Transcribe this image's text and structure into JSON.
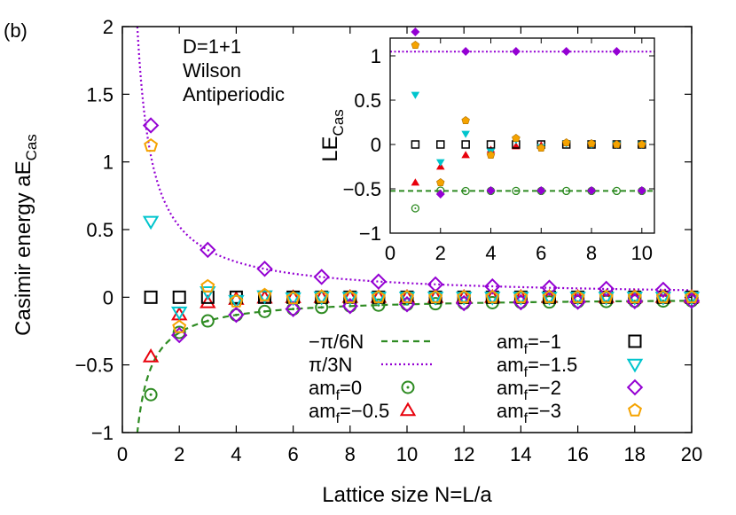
{
  "chart_data": [
    {
      "type": "scatter",
      "panel_label": "(b)",
      "xlabel": "Lattice size N=L/a",
      "ylabel": "Casimir energy aE",
      "ylabel_sub": "Cas",
      "xlim": [
        0,
        20
      ],
      "ylim": [
        -1,
        2
      ],
      "xticks": [
        "0",
        "2",
        "4",
        "6",
        "8",
        "10",
        "12",
        "14",
        "16",
        "18",
        "20"
      ],
      "yticks": [
        "−1",
        "−0.5",
        "0",
        "0.5",
        "1",
        "1.5",
        "2"
      ],
      "annotations": [
        "D=1+1",
        "Wilson",
        "Antiperiodic"
      ],
      "curves": [
        {
          "name": "−π/6N",
          "formula": "-pi/(6N)",
          "color": "#2e8b22",
          "style": "dashed"
        },
        {
          "name": "π/3N",
          "formula": "pi/(3N)",
          "color": "#9400d3",
          "style": "dotted"
        }
      ],
      "series": [
        {
          "name": "am",
          "name_sub": "f",
          "name_rest": "=0",
          "marker": "circle-dot",
          "color": "#2e8b22",
          "x": [
            1,
            2,
            3,
            4,
            5,
            6,
            7,
            8,
            9,
            10,
            11,
            12,
            13,
            14,
            15,
            16,
            17,
            18,
            19,
            20
          ],
          "y": [
            -0.72,
            -0.26,
            -0.175,
            -0.131,
            -0.105,
            -0.087,
            -0.075,
            -0.065,
            -0.058,
            -0.052,
            -0.048,
            -0.044,
            -0.04,
            -0.037,
            -0.035,
            -0.033,
            -0.031,
            -0.029,
            -0.028,
            -0.026
          ]
        },
        {
          "name": "am",
          "name_sub": "f",
          "name_rest": "=−0.5",
          "marker": "triangle-up",
          "color": "#e8000b",
          "x": [
            1,
            2,
            3,
            4,
            5,
            6,
            7,
            8,
            9,
            10,
            11,
            12,
            13,
            14,
            15,
            16,
            17,
            18,
            19,
            20
          ],
          "y": [
            -0.44,
            -0.13,
            -0.04,
            -0.015,
            -0.005,
            -0.002,
            -0.001,
            0,
            0,
            0,
            0,
            0,
            0,
            0,
            0,
            0,
            0,
            0,
            0,
            0
          ]
        },
        {
          "name": "am",
          "name_sub": "f",
          "name_rest": "=−1",
          "marker": "square",
          "color": "#000000",
          "x": [
            1,
            2,
            3,
            4,
            5,
            6,
            7,
            8,
            9,
            10,
            11,
            12,
            13,
            14,
            15,
            16,
            17,
            18,
            19,
            20
          ],
          "y": [
            0,
            0,
            0,
            0,
            0,
            0,
            0,
            0,
            0,
            0,
            0,
            0,
            0,
            0,
            0,
            0,
            0,
            0,
            0,
            0
          ]
        },
        {
          "name": "am",
          "name_sub": "f",
          "name_rest": "=−1.5",
          "marker": "triangle-down",
          "color": "#00c5cd",
          "x": [
            1,
            2,
            3,
            4,
            5,
            6,
            7,
            8,
            9,
            10,
            11,
            12,
            13,
            14,
            15,
            16,
            17,
            18,
            19,
            20
          ],
          "y": [
            0.56,
            -0.11,
            0.04,
            -0.025,
            0.01,
            -0.005,
            0.002,
            -0.001,
            0,
            0,
            0,
            0,
            0,
            0,
            0,
            0,
            0,
            0,
            0,
            0
          ]
        },
        {
          "name": "am",
          "name_sub": "f",
          "name_rest": "=−2",
          "marker": "diamond",
          "color": "#9400d3",
          "x": [
            1,
            2,
            3,
            4,
            5,
            6,
            7,
            8,
            9,
            10,
            11,
            12,
            13,
            14,
            15,
            16,
            17,
            18,
            19,
            20
          ],
          "y": [
            1.27,
            -0.28,
            0.35,
            -0.13,
            0.21,
            -0.087,
            0.15,
            -0.065,
            0.116,
            -0.052,
            0.095,
            -0.044,
            0.08,
            -0.037,
            0.07,
            -0.033,
            0.062,
            -0.029,
            0.055,
            -0.026
          ]
        },
        {
          "name": "am",
          "name_sub": "f",
          "name_rest": "=−3",
          "marker": "pentagon",
          "color": "#f5a300",
          "x": [
            1,
            2,
            3,
            4,
            5,
            6,
            7,
            8,
            9,
            10,
            11,
            12,
            13,
            14,
            15,
            16,
            17,
            18,
            19,
            20
          ],
          "y": [
            1.12,
            -0.22,
            0.08,
            -0.03,
            0.015,
            -0.007,
            0.003,
            -0.001,
            0,
            0,
            0,
            0,
            0,
            0,
            0,
            0,
            0,
            0,
            0,
            0
          ]
        }
      ],
      "legend": {
        "placement": "bottom-center",
        "columns": 2
      }
    },
    {
      "type": "scatter",
      "inset": true,
      "ylabel": "LE",
      "ylabel_sub": "Cas",
      "xlim": [
        0,
        10.5
      ],
      "ylim": [
        -1,
        1.2
      ],
      "xticks": [
        "0",
        "2",
        "4",
        "6",
        "8",
        "10"
      ],
      "yticks": [
        "−1",
        "−0.5",
        "0",
        "0.5",
        "1"
      ],
      "curves": [
        {
          "name": "−π/6",
          "value": -0.5236,
          "color": "#2e8b22",
          "style": "dashed"
        },
        {
          "name": "π/3",
          "value": 1.0472,
          "color": "#9400d3",
          "style": "dotted"
        }
      ],
      "series": [
        {
          "marker": "circle-dot",
          "color": "#2e8b22",
          "x": [
            1,
            2,
            3,
            4,
            5,
            6,
            7,
            8,
            9,
            10
          ],
          "y": [
            -0.72,
            -0.52,
            -0.525,
            -0.524,
            -0.524,
            -0.524,
            -0.524,
            -0.524,
            -0.524,
            -0.524
          ]
        },
        {
          "marker": "triangle-up",
          "color": "#e8000b",
          "x": [
            1,
            2,
            3,
            4,
            5,
            6
          ],
          "y": [
            -0.43,
            -0.25,
            -0.12,
            -0.06,
            -0.02,
            -0.01
          ]
        },
        {
          "marker": "square",
          "color": "#000000",
          "x": [
            1,
            2,
            3,
            4,
            5,
            6,
            7,
            8,
            9,
            10
          ],
          "y": [
            0,
            0,
            0,
            0,
            0,
            0,
            0,
            0,
            0,
            0
          ]
        },
        {
          "marker": "triangle-down",
          "color": "#00c5cd",
          "x": [
            1,
            2,
            3,
            4,
            5,
            6,
            7,
            8,
            9,
            10
          ],
          "y": [
            0.56,
            -0.2,
            0.12,
            -0.08,
            0.05,
            -0.03,
            0.01,
            0,
            0,
            0
          ]
        },
        {
          "marker": "diamond",
          "color": "#9400d3",
          "x": [
            1,
            2,
            3,
            4,
            5,
            6,
            7,
            8,
            9,
            10
          ],
          "y": [
            1.27,
            -0.56,
            1.05,
            -0.52,
            1.05,
            -0.52,
            1.05,
            -0.52,
            1.05,
            -0.52
          ]
        },
        {
          "marker": "pentagon",
          "color": "#f5a300",
          "x": [
            1,
            2,
            3,
            4,
            5,
            6,
            7,
            8,
            9,
            10
          ],
          "y": [
            1.12,
            -0.43,
            0.27,
            -0.12,
            0.07,
            -0.04,
            0.02,
            0.01,
            0,
            0
          ]
        }
      ]
    }
  ]
}
